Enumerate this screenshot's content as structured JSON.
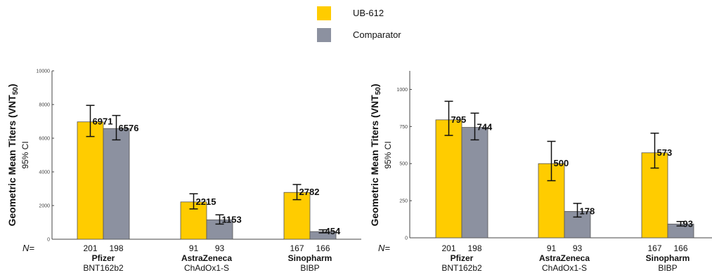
{
  "legend": [
    {
      "label": "UB-612",
      "color": "#FFCC00"
    },
    {
      "label": "Comparator",
      "color": "#8C91A0"
    }
  ],
  "n_label": "N=",
  "y_label_main": "Geometric Mean Titers (VNT",
  "y_label_sub": "50",
  "y_label_close": ")",
  "y_label_ci": "95% CI",
  "categories": [
    {
      "name": "Pfizer",
      "sub": "BNT162b2",
      "n": [
        "201",
        "198"
      ]
    },
    {
      "name": "AstraZeneca",
      "sub": "ChAdOx1-S",
      "n": [
        "91",
        "93"
      ]
    },
    {
      "name": "Sinopharm",
      "sub": "BIBP",
      "n": [
        "167",
        "166"
      ]
    }
  ],
  "chart_data": [
    {
      "type": "bar",
      "categories": [
        "Pfizer BNT162b2",
        "AstraZeneca ChAdOx1-S",
        "Sinopharm BIBP"
      ],
      "series": [
        {
          "name": "UB-612",
          "values": [
            6971,
            2215,
            2782
          ],
          "ci_low": [
            6100,
            1800,
            2350
          ],
          "ci_high": [
            7950,
            2700,
            3250
          ]
        },
        {
          "name": "Comparator",
          "values": [
            6576,
            1153,
            454
          ],
          "ci_low": [
            5900,
            900,
            380
          ],
          "ci_high": [
            7350,
            1450,
            560
          ]
        }
      ],
      "value_labels": [
        [
          "6971",
          "2215",
          "2782"
        ],
        [
          "6576",
          "1153",
          "454"
        ]
      ],
      "ylim": [
        0,
        10000
      ],
      "yticks": [
        0,
        2000,
        4000,
        6000,
        8000,
        10000
      ]
    },
    {
      "type": "bar",
      "categories": [
        "Pfizer BNT162b2",
        "AstraZeneca ChAdOx1-S",
        "Sinopharm BIBP"
      ],
      "series": [
        {
          "name": "UB-612",
          "values": [
            795,
            500,
            573
          ],
          "ci_low": [
            690,
            385,
            470
          ],
          "ci_high": [
            920,
            650,
            705
          ]
        },
        {
          "name": "Comparator",
          "values": [
            744,
            178,
            93
          ],
          "ci_low": [
            660,
            140,
            80
          ],
          "ci_high": [
            840,
            232,
            110
          ]
        }
      ],
      "value_labels": [
        [
          "795",
          "500",
          "573"
        ],
        [
          "744",
          "178",
          "93"
        ]
      ],
      "ylim": [
        0,
        1125
      ],
      "yticks": [
        0,
        250,
        500,
        750,
        1000
      ]
    }
  ]
}
